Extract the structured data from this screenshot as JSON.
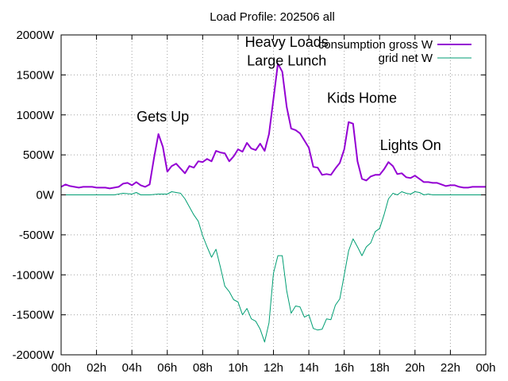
{
  "chart_data": {
    "type": "line",
    "title": "Load Profile: 202506 all",
    "xlabel": "",
    "ylabel": "",
    "xlim": [
      0,
      24
    ],
    "ylim": [
      -2000,
      2000
    ],
    "grid": true,
    "legend_position": "top-right",
    "x_ticks": [
      {
        "v": 0,
        "label": "00h"
      },
      {
        "v": 2,
        "label": "02h"
      },
      {
        "v": 4,
        "label": "04h"
      },
      {
        "v": 6,
        "label": "06h"
      },
      {
        "v": 8,
        "label": "08h"
      },
      {
        "v": 10,
        "label": "10h"
      },
      {
        "v": 12,
        "label": "12h"
      },
      {
        "v": 14,
        "label": "14h"
      },
      {
        "v": 16,
        "label": "16h"
      },
      {
        "v": 18,
        "label": "18h"
      },
      {
        "v": 20,
        "label": "20h"
      },
      {
        "v": 22,
        "label": "22h"
      },
      {
        "v": 24,
        "label": "00h"
      }
    ],
    "y_ticks": [
      {
        "v": 2000,
        "label": "2000W"
      },
      {
        "v": 1500,
        "label": "1500W"
      },
      {
        "v": 1000,
        "label": "1000W"
      },
      {
        "v": 500,
        "label": "500W"
      },
      {
        "v": 0,
        "label": "0W"
      },
      {
        "v": -500,
        "label": "-500W"
      },
      {
        "v": -1000,
        "label": "-1000W"
      },
      {
        "v": -1500,
        "label": "-1500W"
      },
      {
        "v": -2000,
        "label": "-2000W"
      }
    ],
    "series": [
      {
        "name": "consumption gross W",
        "color": "#9400d3",
        "width": 2,
        "points": [
          [
            0,
            100
          ],
          [
            0.25,
            130
          ],
          [
            0.5,
            110
          ],
          [
            0.75,
            100
          ],
          [
            1,
            90
          ],
          [
            1.25,
            100
          ],
          [
            1.5,
            100
          ],
          [
            1.75,
            100
          ],
          [
            2,
            90
          ],
          [
            2.25,
            90
          ],
          [
            2.5,
            90
          ],
          [
            2.75,
            80
          ],
          [
            3,
            90
          ],
          [
            3.25,
            100
          ],
          [
            3.5,
            140
          ],
          [
            3.75,
            150
          ],
          [
            4,
            120
          ],
          [
            4.25,
            160
          ],
          [
            4.5,
            120
          ],
          [
            4.75,
            100
          ],
          [
            5,
            130
          ],
          [
            5.25,
            460
          ],
          [
            5.5,
            760
          ],
          [
            5.75,
            600
          ],
          [
            6,
            290
          ],
          [
            6.25,
            360
          ],
          [
            6.5,
            390
          ],
          [
            6.75,
            330
          ],
          [
            7,
            270
          ],
          [
            7.25,
            360
          ],
          [
            7.5,
            340
          ],
          [
            7.75,
            420
          ],
          [
            8,
            410
          ],
          [
            8.25,
            450
          ],
          [
            8.5,
            420
          ],
          [
            8.75,
            550
          ],
          [
            9,
            530
          ],
          [
            9.25,
            520
          ],
          [
            9.5,
            420
          ],
          [
            9.75,
            480
          ],
          [
            10,
            570
          ],
          [
            10.25,
            540
          ],
          [
            10.5,
            650
          ],
          [
            10.75,
            580
          ],
          [
            11,
            560
          ],
          [
            11.25,
            640
          ],
          [
            11.5,
            550
          ],
          [
            11.75,
            760
          ],
          [
            12,
            1200
          ],
          [
            12.25,
            1640
          ],
          [
            12.5,
            1540
          ],
          [
            12.75,
            1100
          ],
          [
            13,
            830
          ],
          [
            13.25,
            810
          ],
          [
            13.5,
            770
          ],
          [
            13.75,
            680
          ],
          [
            14,
            590
          ],
          [
            14.25,
            350
          ],
          [
            14.5,
            340
          ],
          [
            14.75,
            250
          ],
          [
            15,
            260
          ],
          [
            15.25,
            250
          ],
          [
            15.5,
            330
          ],
          [
            15.75,
            400
          ],
          [
            16,
            570
          ],
          [
            16.25,
            910
          ],
          [
            16.5,
            890
          ],
          [
            16.75,
            420
          ],
          [
            17,
            200
          ],
          [
            17.25,
            180
          ],
          [
            17.5,
            230
          ],
          [
            17.75,
            250
          ],
          [
            18,
            250
          ],
          [
            18.25,
            320
          ],
          [
            18.5,
            410
          ],
          [
            18.75,
            360
          ],
          [
            19,
            260
          ],
          [
            19.25,
            270
          ],
          [
            19.5,
            220
          ],
          [
            19.75,
            210
          ],
          [
            20,
            240
          ],
          [
            20.25,
            200
          ],
          [
            20.5,
            160
          ],
          [
            20.75,
            160
          ],
          [
            21,
            150
          ],
          [
            21.25,
            150
          ],
          [
            21.5,
            130
          ],
          [
            21.75,
            110
          ],
          [
            22,
            120
          ],
          [
            22.25,
            120
          ],
          [
            22.5,
            100
          ],
          [
            22.75,
            90
          ],
          [
            23,
            90
          ],
          [
            23.25,
            100
          ],
          [
            23.5,
            100
          ],
          [
            23.75,
            100
          ],
          [
            24,
            100
          ]
        ]
      },
      {
        "name": "grid net W",
        "color": "#009e73",
        "width": 1,
        "points": [
          [
            0,
            0
          ],
          [
            0.5,
            0
          ],
          [
            1,
            0
          ],
          [
            1.5,
            0
          ],
          [
            2,
            0
          ],
          [
            2.5,
            0
          ],
          [
            3,
            0
          ],
          [
            3.5,
            20
          ],
          [
            4,
            10
          ],
          [
            4.25,
            30
          ],
          [
            4.5,
            0
          ],
          [
            5,
            0
          ],
          [
            5.5,
            10
          ],
          [
            6,
            10
          ],
          [
            6.25,
            40
          ],
          [
            6.5,
            30
          ],
          [
            6.75,
            20
          ],
          [
            7,
            -50
          ],
          [
            7.25,
            -150
          ],
          [
            7.5,
            -250
          ],
          [
            7.75,
            -330
          ],
          [
            8,
            -510
          ],
          [
            8.25,
            -650
          ],
          [
            8.5,
            -780
          ],
          [
            8.75,
            -680
          ],
          [
            9,
            -900
          ],
          [
            9.25,
            -1140
          ],
          [
            9.5,
            -1210
          ],
          [
            9.75,
            -1310
          ],
          [
            10,
            -1340
          ],
          [
            10.25,
            -1500
          ],
          [
            10.5,
            -1420
          ],
          [
            10.75,
            -1550
          ],
          [
            11,
            -1580
          ],
          [
            11.25,
            -1680
          ],
          [
            11.5,
            -1840
          ],
          [
            11.75,
            -1600
          ],
          [
            12,
            -980
          ],
          [
            12.25,
            -760
          ],
          [
            12.5,
            -760
          ],
          [
            12.75,
            -1200
          ],
          [
            13,
            -1480
          ],
          [
            13.25,
            -1390
          ],
          [
            13.5,
            -1400
          ],
          [
            13.75,
            -1530
          ],
          [
            14,
            -1500
          ],
          [
            14.25,
            -1670
          ],
          [
            14.5,
            -1690
          ],
          [
            14.75,
            -1680
          ],
          [
            15,
            -1550
          ],
          [
            15.25,
            -1560
          ],
          [
            15.5,
            -1380
          ],
          [
            15.75,
            -1300
          ],
          [
            16,
            -1000
          ],
          [
            16.25,
            -700
          ],
          [
            16.5,
            -550
          ],
          [
            16.75,
            -650
          ],
          [
            17,
            -760
          ],
          [
            17.25,
            -650
          ],
          [
            17.5,
            -600
          ],
          [
            17.75,
            -460
          ],
          [
            18,
            -420
          ],
          [
            18.25,
            -250
          ],
          [
            18.5,
            -50
          ],
          [
            18.75,
            20
          ],
          [
            19,
            0
          ],
          [
            19.25,
            40
          ],
          [
            19.5,
            20
          ],
          [
            19.75,
            10
          ],
          [
            20,
            40
          ],
          [
            20.25,
            30
          ],
          [
            20.5,
            0
          ],
          [
            20.75,
            10
          ],
          [
            21,
            0
          ],
          [
            21.5,
            0
          ],
          [
            22,
            0
          ],
          [
            22.5,
            0
          ],
          [
            23,
            0
          ],
          [
            23.5,
            0
          ],
          [
            24,
            0
          ]
        ]
      }
    ],
    "annotations": [
      {
        "text": "Gets Up",
        "x": 5.75,
        "y": 920
      },
      {
        "text": "Heavy Loads",
        "x": 12.75,
        "y": 1850
      },
      {
        "text": "Large Lunch",
        "x": 12.75,
        "y": 1620
      },
      {
        "text": "Kids Home",
        "x": 17.0,
        "y": 1150
      },
      {
        "text": "Lights On",
        "x": 19.75,
        "y": 560
      }
    ]
  }
}
